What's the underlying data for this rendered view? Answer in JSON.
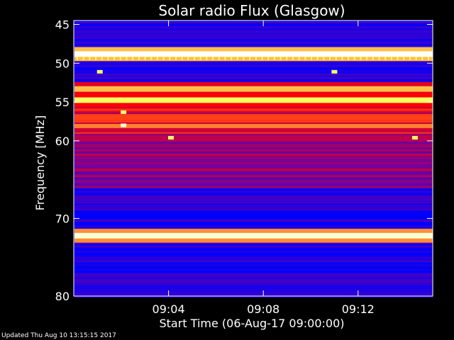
{
  "chart_data": {
    "type": "heatmap",
    "title": "Solar radio Flux (Glasgow)",
    "ylabel": "Frequency [MHz]",
    "xlabel": "Start Time (06-Aug-17 09:00:00)",
    "y_ticks": [
      45,
      50,
      55,
      60,
      70,
      80
    ],
    "y_range": [
      44.5,
      80
    ],
    "x_ticks": [
      "09:04",
      "09:08",
      "09:12"
    ],
    "x_tick_minutes": [
      4,
      8,
      12
    ],
    "x_range_minutes": [
      0,
      15.15
    ],
    "colormap": [
      "#000090",
      "#0000ff",
      "#7000a0",
      "#ff0000",
      "#ffff60",
      "#ffffff"
    ],
    "intense_bands_mhz": [
      {
        "f": 48.8,
        "level": 1.0
      },
      {
        "f": 53.3,
        "level": 0.75
      },
      {
        "f": 54.6,
        "level": 0.8
      },
      {
        "f": 56.8,
        "level": 0.65
      },
      {
        "f": 58.0,
        "level": 0.7
      },
      {
        "f": 72.2,
        "level": 0.95
      }
    ],
    "bursts": [
      {
        "t_min": 2.1,
        "f": 58.0,
        "level": 0.95
      },
      {
        "t_min": 2.1,
        "f": 56.3,
        "level": 0.8
      },
      {
        "t_min": 4.1,
        "f": 59.6,
        "level": 0.8
      },
      {
        "t_min": 14.4,
        "f": 59.6,
        "level": 0.8
      },
      {
        "t_min": 1.1,
        "f": 51.1,
        "level": 0.8
      },
      {
        "t_min": 11.0,
        "f": 51.1,
        "level": 0.8
      }
    ]
  },
  "footer": {
    "updated": "Updated Thu Aug 10 13:15:15 2017"
  }
}
